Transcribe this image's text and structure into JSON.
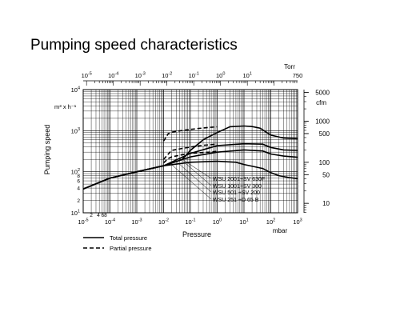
{
  "page": {
    "title": "Pumping speed characteristics"
  },
  "chart_data": {
    "type": "line",
    "title": "Pumping speed characteristics",
    "xlabel": "Pressure",
    "x_unit": "mbar",
    "ylabel": "Pumping speed",
    "y_unit": "m³ x h⁻¹",
    "top_axis_unit": "Torr",
    "right_axis_unit": "cfm",
    "x_scale": "log",
    "y_scale": "log",
    "xlim": [
      1e-05,
      1000
    ],
    "ylim": [
      10,
      10000
    ],
    "grid": true,
    "x_ticks": [
      {
        "b": "10",
        "e": "-5"
      },
      {
        "b": "10",
        "e": "-4"
      },
      {
        "b": "10",
        "e": "-3"
      },
      {
        "b": "10",
        "e": "-2"
      },
      {
        "b": "10",
        "e": "-1"
      },
      {
        "b": "10",
        "e": "0"
      },
      {
        "b": "10",
        "e": "1"
      },
      {
        "b": "10",
        "e": "2"
      },
      {
        "b": "10",
        "e": "3"
      }
    ],
    "x_minor_labels": [
      "2",
      "4 68"
    ],
    "y_ticks": [
      {
        "b": "10",
        "e": "1"
      },
      {
        "b": "10",
        "e": "2"
      },
      {
        "b": "10",
        "e": "3"
      },
      {
        "b": "10",
        "e": "4"
      }
    ],
    "y_minor_labels": [
      "8",
      "6",
      "4",
      "2"
    ],
    "top_ticks": [
      {
        "b": "10",
        "e": "-5"
      },
      {
        "b": "10",
        "e": "-4"
      },
      {
        "b": "10",
        "e": "-3"
      },
      {
        "b": "10",
        "e": "-2"
      },
      {
        "b": "10",
        "e": "-1"
      },
      {
        "b": "10",
        "e": "0"
      },
      {
        "b": "10",
        "e": "1"
      },
      {
        "b": "750",
        "e": ""
      }
    ],
    "right_ticks": [
      "5000",
      "1000",
      "500",
      "100",
      "50",
      "10"
    ],
    "series": [
      {
        "name": "WSU 2001+SV 630F",
        "x": [
          1e-05,
          0.0001,
          0.001,
          0.01,
          0.05,
          0.1,
          0.3,
          1,
          3,
          10,
          20,
          40,
          100,
          300,
          1000
        ],
        "y": [
          38,
          70,
          100,
          140,
          200,
          330,
          600,
          900,
          1250,
          1300,
          1260,
          1150,
          780,
          660,
          640
        ],
        "partial_x": [
          0.01,
          0.015,
          0.02,
          0.03,
          0.05,
          0.1,
          0.2,
          0.5,
          1
        ],
        "partial_y": [
          560,
          850,
          920,
          960,
          1010,
          1070,
          1130,
          1200,
          1240
        ]
      },
      {
        "name": "WSU 1001+SV 300",
        "x": [
          1e-05,
          0.0001,
          0.001,
          0.01,
          0.1,
          1,
          10,
          50,
          100,
          300,
          1000
        ],
        "y": [
          38,
          70,
          100,
          140,
          280,
          430,
          480,
          470,
          390,
          340,
          330
        ],
        "partial_x": [
          0.01,
          0.015,
          0.02,
          0.05,
          0.1,
          0.3,
          1
        ],
        "partial_y": [
          200,
          270,
          330,
          370,
          400,
          440,
          470
        ]
      },
      {
        "name": "WSU 501 +SV 200",
        "x": [
          1e-05,
          0.0001,
          0.001,
          0.01,
          0.1,
          1,
          10,
          50,
          100,
          300,
          1000
        ],
        "y": [
          38,
          70,
          100,
          140,
          230,
          300,
          340,
          320,
          270,
          240,
          225
        ],
        "partial_x": [
          0.01,
          0.015,
          0.02,
          0.05,
          0.1,
          0.5,
          1
        ],
        "partial_y": [
          165,
          210,
          230,
          260,
          280,
          300,
          315
        ]
      },
      {
        "name": "WSU 251 +D 65 B",
        "x": [
          1e-05,
          0.0001,
          0.001,
          0.01,
          0.1,
          1,
          5,
          10,
          50,
          100,
          200,
          500,
          1000
        ],
        "y": [
          38,
          70,
          100,
          140,
          170,
          180,
          170,
          150,
          120,
          95,
          80,
          72,
          68
        ]
      }
    ],
    "legend": {
      "total": "Total pressure",
      "partial": "Partial pressure"
    }
  }
}
